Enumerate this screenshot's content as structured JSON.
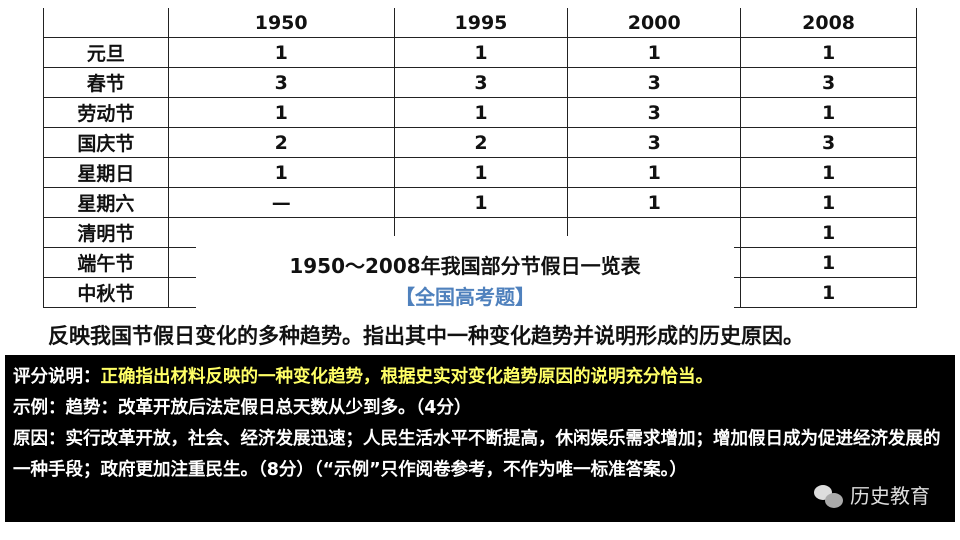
{
  "table": {
    "headers": [
      "",
      "1950",
      "1995",
      "2000",
      "2008"
    ],
    "rows": [
      {
        "label": "元旦",
        "values": [
          "1",
          "1",
          "1",
          "1"
        ]
      },
      {
        "label": "春节",
        "values": [
          "3",
          "3",
          "3",
          "3"
        ]
      },
      {
        "label": "劳动节",
        "values": [
          "1",
          "1",
          "3",
          "1"
        ]
      },
      {
        "label": "国庆节",
        "values": [
          "2",
          "2",
          "3",
          "3"
        ]
      },
      {
        "label": "星期日",
        "values": [
          "1",
          "1",
          "1",
          "1"
        ]
      },
      {
        "label": "星期六",
        "values": [
          "—",
          "1",
          "1",
          "1"
        ]
      },
      {
        "label": "清明节",
        "values": [
          "",
          "",
          "",
          "1"
        ]
      },
      {
        "label": "端午节",
        "values": [
          "",
          "",
          "",
          "1"
        ]
      },
      {
        "label": "中秋节",
        "values": [
          "",
          "",
          "",
          "1"
        ]
      }
    ],
    "caption": "1950～2008年我国部分节假日一览表",
    "source": "【全国高考题】"
  },
  "question": "反映我国节假日变化的多种趋势。指出其中一种变化趋势并说明形成的历史原因。",
  "answer": {
    "line1_label": "评分说明：",
    "line1_highlight": "正确指出材料反映的一种变化趋势，根据史实对变化趋势原因的说明充分恰当。",
    "line2": "示例：趋势：改革开放后法定假日总天数从少到多。（4分）",
    "line3": "原因：实行改革开放，社会、经济发展迅速；人民生活水平不断提高，休闲娱乐需求增加；增加假日成为促进经济发展的一种手段；政府更加注重民生。（8分）（“示例”只作阅卷参考，不作为唯一标准答案。）"
  },
  "watermark": {
    "icon": "wechat-icon",
    "text": "历史教育"
  },
  "colors": {
    "highlight": "#ffff66",
    "source": "#4f81bd",
    "answer_bg": "#000000"
  }
}
